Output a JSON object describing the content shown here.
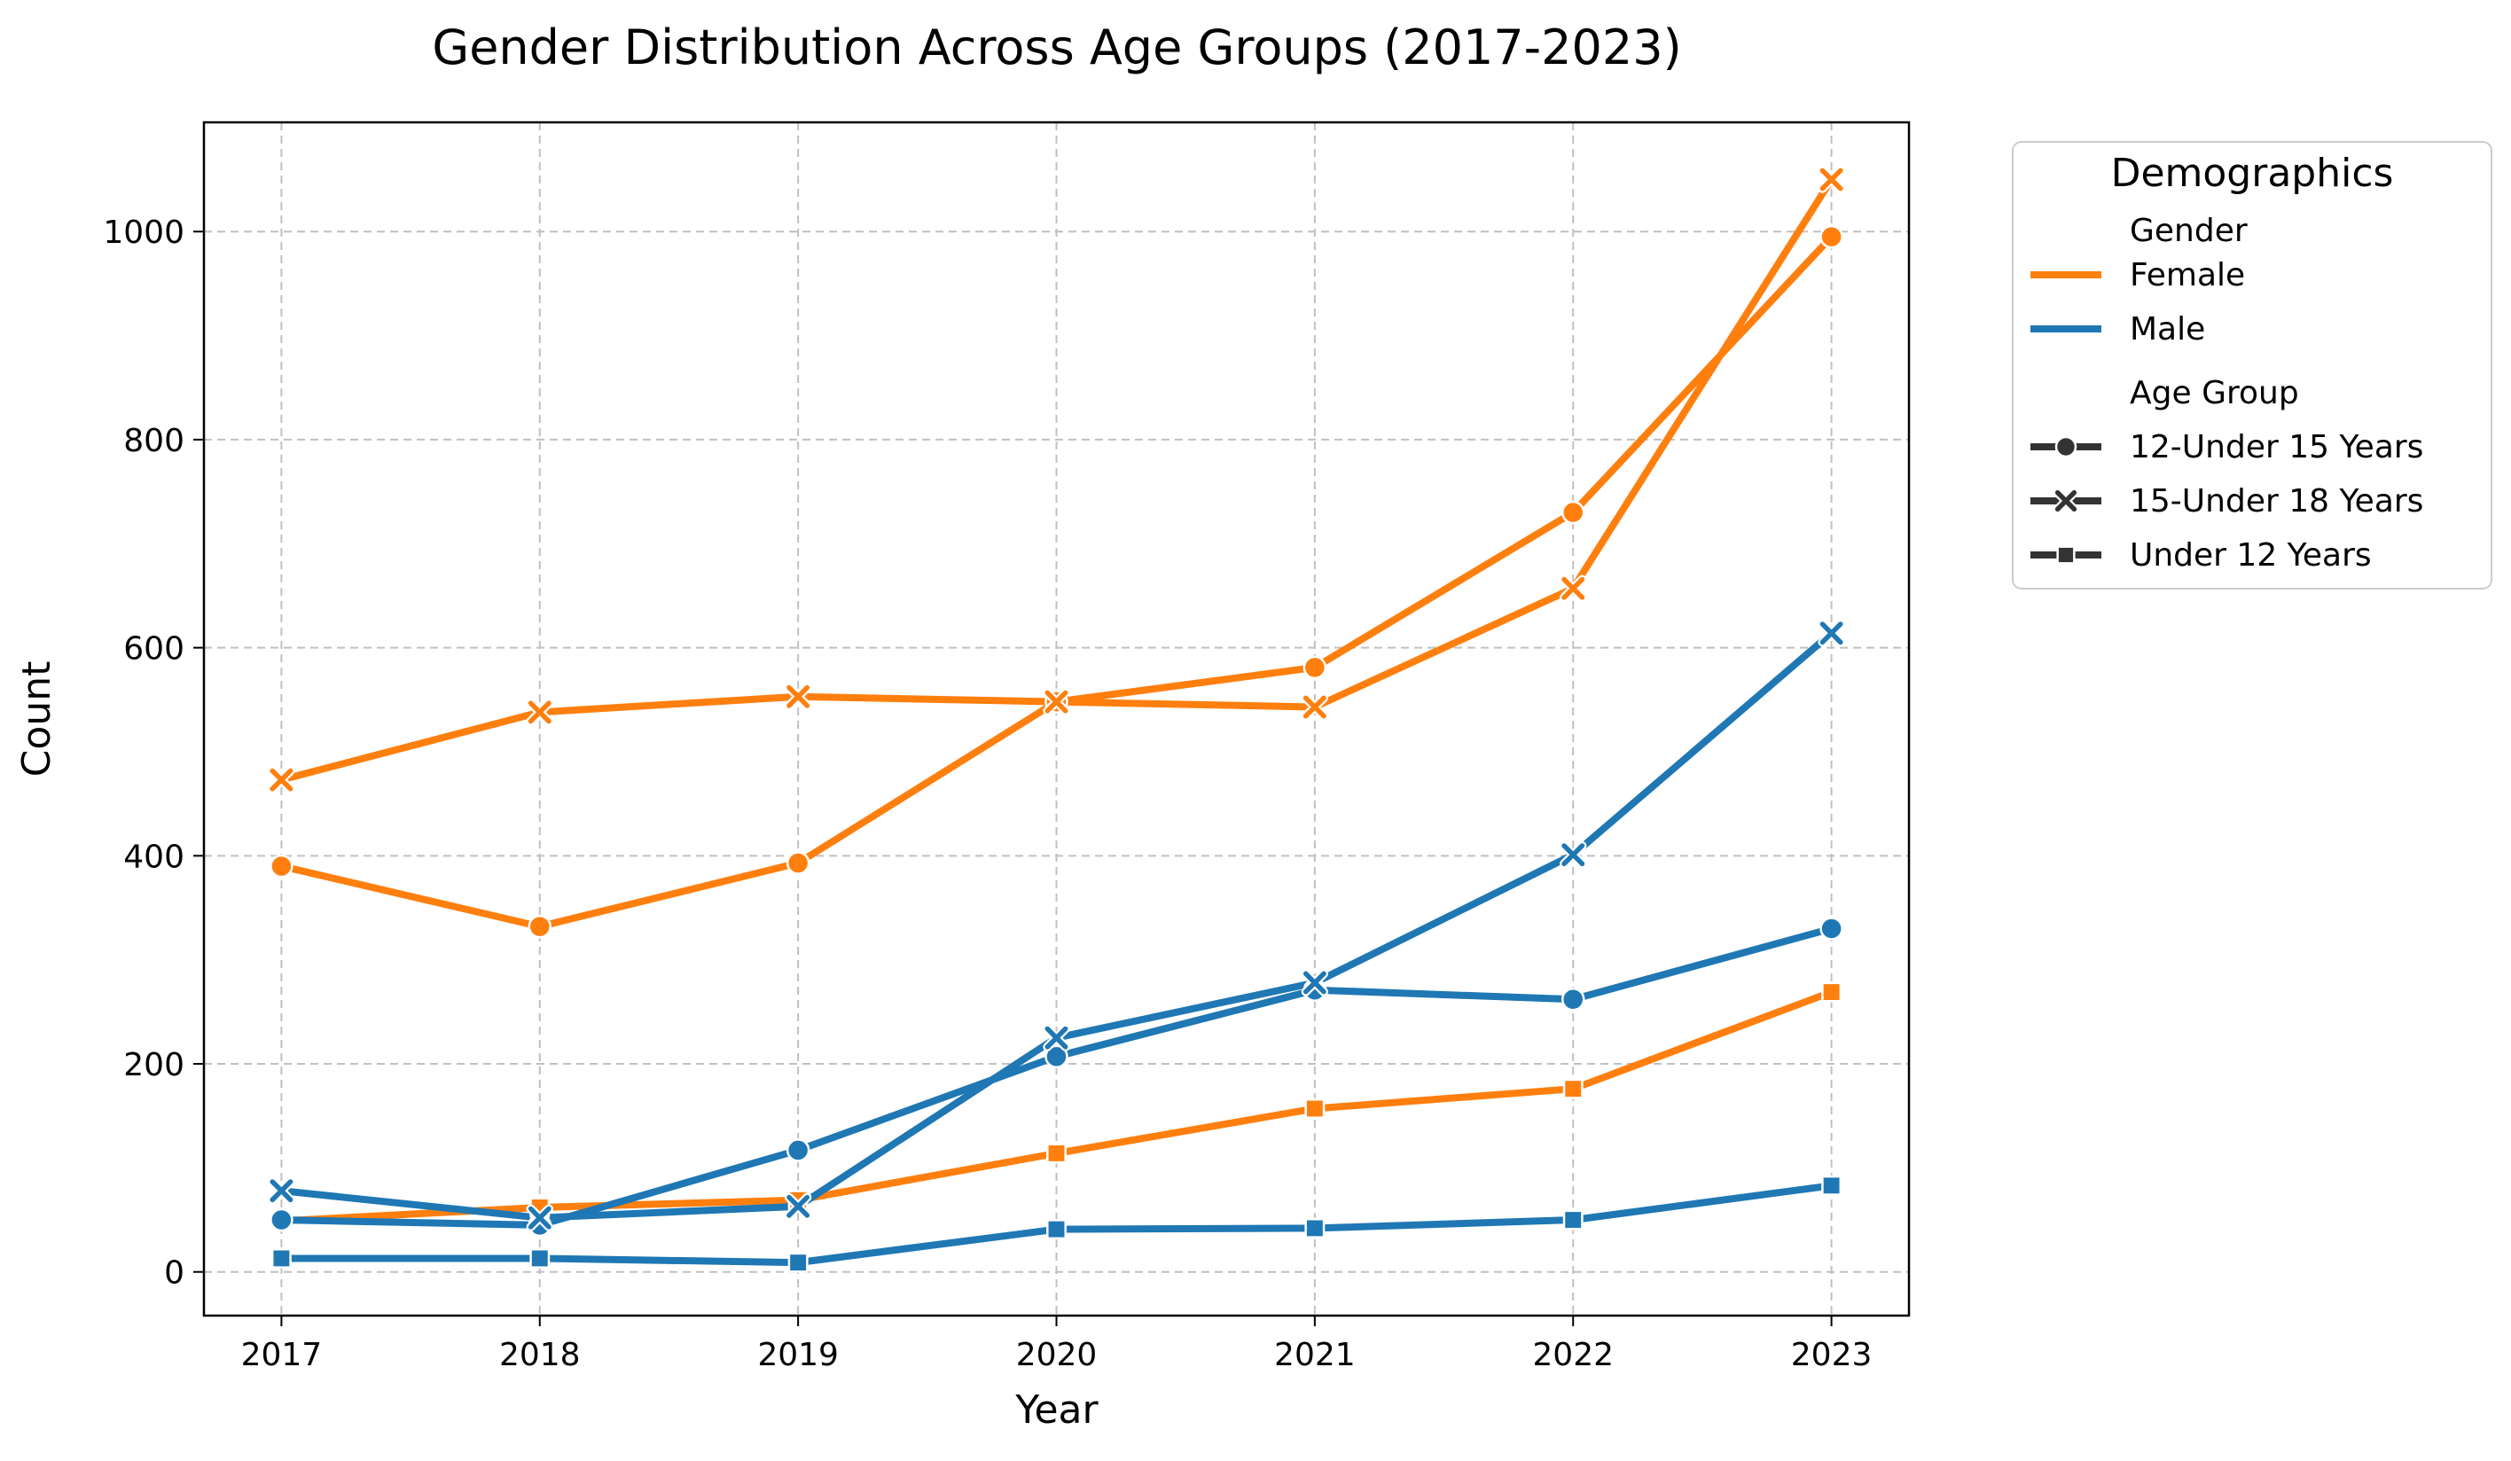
{
  "colors": {
    "Female": "#ff7f0e",
    "Male": "#1f77b4",
    "legend_neutral": "#333333",
    "grid": "#c0c0c0"
  },
  "chart_data": {
    "type": "line",
    "title": "Gender Distribution Across Age Groups (2017-2023)",
    "xlabel": "Year",
    "ylabel": "Count",
    "x": [
      "2017",
      "2018",
      "2019",
      "2020",
      "2021",
      "2022",
      "2023"
    ],
    "y_ticks": [
      "0",
      "200",
      "400",
      "600",
      "800",
      "1000"
    ],
    "xlim": [
      2016.7,
      2023.3
    ],
    "ylim": [
      -42,
      1105
    ],
    "grid": true,
    "legend_position": "outside-right",
    "series": [
      {
        "gender": "Female",
        "age_group": "12-Under 15 Years",
        "marker": "circle",
        "values": [
          390,
          332,
          393,
          548,
          581,
          730,
          995
        ]
      },
      {
        "gender": "Female",
        "age_group": "15-Under 18 Years",
        "marker": "x",
        "values": [
          473,
          538,
          553,
          548,
          543,
          657,
          1050
        ]
      },
      {
        "gender": "Female",
        "age_group": "Under 12 Years",
        "marker": "square",
        "values": [
          49,
          62,
          69,
          114,
          157,
          176,
          269
        ]
      },
      {
        "gender": "Male",
        "age_group": "12-Under 15 Years",
        "marker": "circle",
        "values": [
          50,
          45,
          117,
          207,
          271,
          262,
          330
        ]
      },
      {
        "gender": "Male",
        "age_group": "15-Under 18 Years",
        "marker": "x",
        "values": [
          78,
          52,
          63,
          225,
          278,
          401,
          614
        ]
      },
      {
        "gender": "Male",
        "age_group": "Under 12 Years",
        "marker": "square",
        "values": [
          13,
          13,
          9,
          41,
          42,
          50,
          83
        ]
      }
    ],
    "legend": {
      "title": "Demographics",
      "gender_header": "Gender",
      "genders": [
        "Female",
        "Male"
      ],
      "age_header": "Age Group",
      "age_groups": [
        {
          "label": "12-Under 15 Years",
          "marker": "circle"
        },
        {
          "label": "15-Under 18 Years",
          "marker": "x"
        },
        {
          "label": "Under 12 Years",
          "marker": "square"
        }
      ]
    }
  }
}
